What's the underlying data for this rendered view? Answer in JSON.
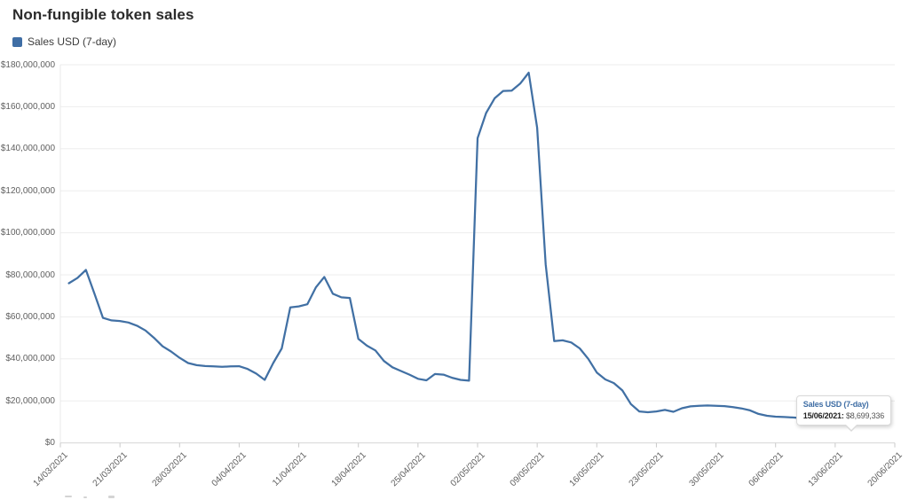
{
  "title": "Non-fungible token sales",
  "legend": {
    "label": "Sales USD (7-day)",
    "swatch_color": "#3f6ea5"
  },
  "tooltip": {
    "series_label": "Sales USD (7-day)",
    "date_label": "15/06/2021:",
    "value_label": "$8,699,336"
  },
  "colors": {
    "line": "#4170a4",
    "grid": "#ededed",
    "axis_baseline": "#d6d6d6",
    "axis_left": "#e8e8e8",
    "tick": "#c9c9c9",
    "axis_text": "#606060",
    "title_text": "#2b2b2b",
    "legend_text": "#3c3c3c",
    "background": "#ffffff"
  },
  "chart_data": {
    "type": "line",
    "title": "Non-fungible token sales",
    "grid": "horizontal",
    "legend_position": "top-left",
    "ylabel": "",
    "xlabel": "",
    "ylim": [
      0,
      180000000
    ],
    "y_tick_step_usd": 20000000,
    "y_tick_labels": [
      "$0",
      "$20,000,000",
      "$40,000,000",
      "$60,000,000",
      "$80,000,000",
      "$100,000,000",
      "$120,000,000",
      "$140,000,000",
      "$160,000,000",
      "$180,000,000"
    ],
    "x_tick_labels": [
      "14/03/2021",
      "21/03/2021",
      "28/03/2021",
      "04/04/2021",
      "11/04/2021",
      "18/04/2021",
      "25/04/2021",
      "02/05/2021",
      "09/05/2021",
      "16/05/2021",
      "23/05/2021",
      "30/05/2021",
      "06/06/2021",
      "13/06/2021",
      "20/06/2021"
    ],
    "series": [
      {
        "name": "Sales USD (7-day)",
        "color": "#4170a4",
        "interval": "daily",
        "start_date": "15/03/2021",
        "end_date": "15/06/2021",
        "values_usd_millions": [
          76.0,
          78.5,
          82.3,
          71.0,
          59.5,
          58.3,
          58.0,
          57.3,
          55.8,
          53.5,
          50.0,
          46.0,
          43.5,
          40.5,
          38.0,
          37.0,
          36.6,
          36.4,
          36.2,
          36.4,
          36.5,
          35.2,
          33.0,
          30.0,
          38.0,
          45.0,
          64.5,
          65.0,
          66.0,
          74.0,
          79.0,
          71.0,
          69.3,
          69.0,
          49.5,
          46.3,
          44.0,
          39.0,
          36.0,
          34.2,
          32.5,
          30.5,
          29.8,
          32.8,
          32.5,
          31.0,
          30.0,
          29.6,
          145.0,
          157.0,
          164.0,
          167.5,
          167.7,
          171.0,
          176.2,
          150.0,
          85.0,
          48.5,
          48.8,
          47.8,
          45.0,
          40.0,
          33.5,
          30.2,
          28.5,
          25.0,
          18.5,
          15.0,
          14.6,
          15.0,
          15.7,
          14.8,
          16.5,
          17.4,
          17.7,
          17.8,
          17.7,
          17.5,
          17.0,
          16.4,
          15.5,
          13.8,
          12.9,
          12.5,
          12.3,
          12.1,
          11.8,
          11.4,
          11.2,
          11.3,
          10.5,
          9.6,
          8.699336
        ]
      }
    ],
    "highlighted_point": {
      "date": "15/06/2021",
      "value_usd": 8699336,
      "formatted": "$8,699,336"
    }
  }
}
